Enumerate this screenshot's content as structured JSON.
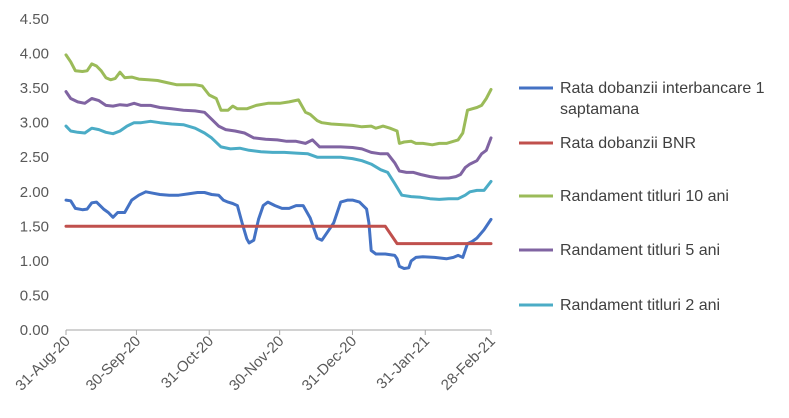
{
  "chart_data": {
    "type": "line",
    "title": "",
    "xlabel": "",
    "ylabel": "",
    "ylim": [
      0,
      4.5
    ],
    "yticks": [
      "0.00",
      "0.50",
      "1.00",
      "1.50",
      "2.00",
      "2.50",
      "3.00",
      "3.50",
      "4.00",
      "4.50"
    ],
    "xlim": [
      "2020-08-31",
      "2021-02-28"
    ],
    "xticks": [
      {
        "date": "2020-08-31",
        "label": "31-Aug-20"
      },
      {
        "date": "2020-09-30",
        "label": "30-Sep-20"
      },
      {
        "date": "2020-10-31",
        "label": "31-Oct-20"
      },
      {
        "date": "2020-11-30",
        "label": "30-Nov-20"
      },
      {
        "date": "2020-12-31",
        "label": "31-Dec-20"
      },
      {
        "date": "2021-01-31",
        "label": "31-Jan-21"
      },
      {
        "date": "2021-02-28",
        "label": "28-Feb-21"
      }
    ],
    "grid": false,
    "legend_position": "right",
    "series": [
      {
        "name": "Rata dobanzii interbancare 1 saptamana",
        "color": "#4472C4",
        "points": [
          [
            "2020-08-31",
            1.88
          ],
          [
            "2020-09-02",
            1.87
          ],
          [
            "2020-09-04",
            1.76
          ],
          [
            "2020-09-07",
            1.74
          ],
          [
            "2020-09-09",
            1.75
          ],
          [
            "2020-09-11",
            1.84
          ],
          [
            "2020-09-13",
            1.85
          ],
          [
            "2020-09-16",
            1.75
          ],
          [
            "2020-09-18",
            1.7
          ],
          [
            "2020-09-20",
            1.63
          ],
          [
            "2020-09-22",
            1.7
          ],
          [
            "2020-09-25",
            1.7
          ],
          [
            "2020-09-28",
            1.88
          ],
          [
            "2020-10-01",
            1.95
          ],
          [
            "2020-10-04",
            2.0
          ],
          [
            "2020-10-07",
            1.98
          ],
          [
            "2020-10-10",
            1.96
          ],
          [
            "2020-10-14",
            1.95
          ],
          [
            "2020-10-18",
            1.95
          ],
          [
            "2020-10-22",
            1.97
          ],
          [
            "2020-10-26",
            1.99
          ],
          [
            "2020-10-29",
            1.99
          ],
          [
            "2020-11-01",
            1.96
          ],
          [
            "2020-11-04",
            1.95
          ],
          [
            "2020-11-06",
            1.88
          ],
          [
            "2020-11-08",
            1.85
          ],
          [
            "2020-11-10",
            1.83
          ],
          [
            "2020-11-12",
            1.8
          ],
          [
            "2020-11-14",
            1.55
          ],
          [
            "2020-11-16",
            1.32
          ],
          [
            "2020-11-17",
            1.26
          ],
          [
            "2020-11-19",
            1.3
          ],
          [
            "2020-11-21",
            1.6
          ],
          [
            "2020-11-23",
            1.8
          ],
          [
            "2020-11-25",
            1.85
          ],
          [
            "2020-11-28",
            1.8
          ],
          [
            "2020-12-01",
            1.76
          ],
          [
            "2020-12-04",
            1.76
          ],
          [
            "2020-12-07",
            1.8
          ],
          [
            "2020-12-10",
            1.8
          ],
          [
            "2020-12-13",
            1.62
          ],
          [
            "2020-12-16",
            1.33
          ],
          [
            "2020-12-18",
            1.3
          ],
          [
            "2020-12-21",
            1.45
          ],
          [
            "2020-12-23",
            1.55
          ],
          [
            "2020-12-26",
            1.85
          ],
          [
            "2020-12-29",
            1.88
          ],
          [
            "2020-12-31",
            1.88
          ],
          [
            "2021-01-03",
            1.85
          ],
          [
            "2021-01-06",
            1.75
          ],
          [
            "2021-01-07",
            1.55
          ],
          [
            "2021-01-08",
            1.15
          ],
          [
            "2021-01-10",
            1.1
          ],
          [
            "2021-01-14",
            1.1
          ],
          [
            "2021-01-18",
            1.08
          ],
          [
            "2021-01-19",
            1.03
          ],
          [
            "2021-01-20",
            0.92
          ],
          [
            "2021-01-22",
            0.89
          ],
          [
            "2021-01-24",
            0.9
          ],
          [
            "2021-01-25",
            1.0
          ],
          [
            "2021-01-27",
            1.05
          ],
          [
            "2021-01-30",
            1.06
          ],
          [
            "2021-02-04",
            1.05
          ],
          [
            "2021-02-09",
            1.03
          ],
          [
            "2021-02-12",
            1.05
          ],
          [
            "2021-02-14",
            1.08
          ],
          [
            "2021-02-16",
            1.05
          ],
          [
            "2021-02-18",
            1.25
          ],
          [
            "2021-02-20",
            1.28
          ],
          [
            "2021-02-22",
            1.33
          ],
          [
            "2021-02-25",
            1.45
          ],
          [
            "2021-02-28",
            1.6
          ]
        ]
      },
      {
        "name": "Rata dobanzii BNR",
        "color": "#C0504D",
        "points": [
          [
            "2020-08-31",
            1.5
          ],
          [
            "2021-01-14",
            1.5
          ],
          [
            "2021-01-19",
            1.25
          ],
          [
            "2021-02-28",
            1.25
          ]
        ]
      },
      {
        "name": "Randament titluri 10 ani",
        "color": "#9BBB59",
        "points": [
          [
            "2020-08-31",
            3.98
          ],
          [
            "2020-09-02",
            3.88
          ],
          [
            "2020-09-04",
            3.75
          ],
          [
            "2020-09-07",
            3.74
          ],
          [
            "2020-09-09",
            3.75
          ],
          [
            "2020-09-11",
            3.85
          ],
          [
            "2020-09-13",
            3.82
          ],
          [
            "2020-09-15",
            3.75
          ],
          [
            "2020-09-17",
            3.65
          ],
          [
            "2020-09-19",
            3.62
          ],
          [
            "2020-09-21",
            3.64
          ],
          [
            "2020-09-23",
            3.73
          ],
          [
            "2020-09-25",
            3.65
          ],
          [
            "2020-09-28",
            3.66
          ],
          [
            "2020-10-01",
            3.63
          ],
          [
            "2020-10-05",
            3.62
          ],
          [
            "2020-10-09",
            3.61
          ],
          [
            "2020-10-13",
            3.58
          ],
          [
            "2020-10-17",
            3.55
          ],
          [
            "2020-10-21",
            3.55
          ],
          [
            "2020-10-25",
            3.55
          ],
          [
            "2020-10-28",
            3.53
          ],
          [
            "2020-10-31",
            3.4
          ],
          [
            "2020-11-03",
            3.35
          ],
          [
            "2020-11-05",
            3.18
          ],
          [
            "2020-11-08",
            3.18
          ],
          [
            "2020-11-10",
            3.24
          ],
          [
            "2020-11-12",
            3.2
          ],
          [
            "2020-11-16",
            3.2
          ],
          [
            "2020-11-20",
            3.25
          ],
          [
            "2020-11-25",
            3.28
          ],
          [
            "2020-11-30",
            3.28
          ],
          [
            "2020-12-04",
            3.3
          ],
          [
            "2020-12-08",
            3.33
          ],
          [
            "2020-12-11",
            3.15
          ],
          [
            "2020-12-13",
            3.12
          ],
          [
            "2020-12-16",
            3.03
          ],
          [
            "2020-12-18",
            3.0
          ],
          [
            "2020-12-22",
            2.98
          ],
          [
            "2020-12-27",
            2.97
          ],
          [
            "2020-12-31",
            2.96
          ],
          [
            "2021-01-04",
            2.94
          ],
          [
            "2021-01-08",
            2.95
          ],
          [
            "2021-01-10",
            2.92
          ],
          [
            "2021-01-13",
            2.95
          ],
          [
            "2021-01-16",
            2.92
          ],
          [
            "2021-01-19",
            2.88
          ],
          [
            "2021-01-20",
            2.7
          ],
          [
            "2021-01-22",
            2.72
          ],
          [
            "2021-01-25",
            2.73
          ],
          [
            "2021-01-27",
            2.7
          ],
          [
            "2021-01-30",
            2.7
          ],
          [
            "2021-02-03",
            2.68
          ],
          [
            "2021-02-06",
            2.7
          ],
          [
            "2021-02-09",
            2.7
          ],
          [
            "2021-02-12",
            2.73
          ],
          [
            "2021-02-14",
            2.75
          ],
          [
            "2021-02-16",
            2.85
          ],
          [
            "2021-02-18",
            3.18
          ],
          [
            "2021-02-20",
            3.2
          ],
          [
            "2021-02-22",
            3.22
          ],
          [
            "2021-02-24",
            3.25
          ],
          [
            "2021-02-26",
            3.35
          ],
          [
            "2021-02-28",
            3.48
          ]
        ]
      },
      {
        "name": "Randament titluri 5 ani",
        "color": "#8064A2",
        "points": [
          [
            "2020-08-31",
            3.45
          ],
          [
            "2020-09-02",
            3.35
          ],
          [
            "2020-09-05",
            3.3
          ],
          [
            "2020-09-08",
            3.28
          ],
          [
            "2020-09-11",
            3.35
          ],
          [
            "2020-09-14",
            3.32
          ],
          [
            "2020-09-17",
            3.25
          ],
          [
            "2020-09-20",
            3.24
          ],
          [
            "2020-09-23",
            3.26
          ],
          [
            "2020-09-26",
            3.25
          ],
          [
            "2020-09-29",
            3.28
          ],
          [
            "2020-10-02",
            3.25
          ],
          [
            "2020-10-06",
            3.25
          ],
          [
            "2020-10-10",
            3.22
          ],
          [
            "2020-10-15",
            3.2
          ],
          [
            "2020-10-20",
            3.18
          ],
          [
            "2020-10-25",
            3.17
          ],
          [
            "2020-10-29",
            3.15
          ],
          [
            "2020-11-01",
            3.05
          ],
          [
            "2020-11-04",
            2.95
          ],
          [
            "2020-11-07",
            2.9
          ],
          [
            "2020-11-11",
            2.88
          ],
          [
            "2020-11-15",
            2.85
          ],
          [
            "2020-11-19",
            2.78
          ],
          [
            "2020-11-24",
            2.76
          ],
          [
            "2020-11-29",
            2.75
          ],
          [
            "2020-12-03",
            2.73
          ],
          [
            "2020-12-07",
            2.73
          ],
          [
            "2020-12-11",
            2.7
          ],
          [
            "2020-12-14",
            2.75
          ],
          [
            "2020-12-17",
            2.65
          ],
          [
            "2020-12-21",
            2.65
          ],
          [
            "2020-12-26",
            2.65
          ],
          [
            "2020-12-31",
            2.64
          ],
          [
            "2021-01-04",
            2.62
          ],
          [
            "2021-01-08",
            2.57
          ],
          [
            "2021-01-12",
            2.55
          ],
          [
            "2021-01-15",
            2.55
          ],
          [
            "2021-01-18",
            2.42
          ],
          [
            "2021-01-20",
            2.3
          ],
          [
            "2021-01-23",
            2.28
          ],
          [
            "2021-01-26",
            2.28
          ],
          [
            "2021-01-29",
            2.25
          ],
          [
            "2021-02-02",
            2.22
          ],
          [
            "2021-02-06",
            2.2
          ],
          [
            "2021-02-10",
            2.2
          ],
          [
            "2021-02-13",
            2.22
          ],
          [
            "2021-02-15",
            2.25
          ],
          [
            "2021-02-17",
            2.35
          ],
          [
            "2021-02-19",
            2.4
          ],
          [
            "2021-02-22",
            2.45
          ],
          [
            "2021-02-24",
            2.55
          ],
          [
            "2021-02-26",
            2.6
          ],
          [
            "2021-02-28",
            2.78
          ]
        ]
      },
      {
        "name": "Randament titluri 2 ani",
        "color": "#4BACC6",
        "points": [
          [
            "2020-08-31",
            2.95
          ],
          [
            "2020-09-02",
            2.88
          ],
          [
            "2020-09-05",
            2.86
          ],
          [
            "2020-09-08",
            2.85
          ],
          [
            "2020-09-11",
            2.92
          ],
          [
            "2020-09-14",
            2.9
          ],
          [
            "2020-09-17",
            2.86
          ],
          [
            "2020-09-20",
            2.84
          ],
          [
            "2020-09-23",
            2.88
          ],
          [
            "2020-09-26",
            2.95
          ],
          [
            "2020-09-29",
            3.0
          ],
          [
            "2020-10-02",
            3.0
          ],
          [
            "2020-10-06",
            3.02
          ],
          [
            "2020-10-10",
            3.0
          ],
          [
            "2020-10-15",
            2.98
          ],
          [
            "2020-10-20",
            2.97
          ],
          [
            "2020-10-25",
            2.92
          ],
          [
            "2020-10-29",
            2.85
          ],
          [
            "2020-11-01",
            2.78
          ],
          [
            "2020-11-05",
            2.65
          ],
          [
            "2020-11-09",
            2.62
          ],
          [
            "2020-11-13",
            2.63
          ],
          [
            "2020-11-17",
            2.6
          ],
          [
            "2020-11-22",
            2.58
          ],
          [
            "2020-11-27",
            2.57
          ],
          [
            "2020-12-02",
            2.57
          ],
          [
            "2020-12-07",
            2.56
          ],
          [
            "2020-12-12",
            2.55
          ],
          [
            "2020-12-16",
            2.5
          ],
          [
            "2020-12-21",
            2.5
          ],
          [
            "2020-12-26",
            2.5
          ],
          [
            "2020-12-31",
            2.48
          ],
          [
            "2021-01-04",
            2.45
          ],
          [
            "2021-01-08",
            2.4
          ],
          [
            "2021-01-12",
            2.32
          ],
          [
            "2021-01-15",
            2.28
          ],
          [
            "2021-01-18",
            2.12
          ],
          [
            "2021-01-21",
            1.95
          ],
          [
            "2021-01-25",
            1.93
          ],
          [
            "2021-01-29",
            1.92
          ],
          [
            "2021-02-02",
            1.9
          ],
          [
            "2021-02-06",
            1.89
          ],
          [
            "2021-02-10",
            1.9
          ],
          [
            "2021-02-14",
            1.9
          ],
          [
            "2021-02-17",
            1.95
          ],
          [
            "2021-02-19",
            2.0
          ],
          [
            "2021-02-22",
            2.02
          ],
          [
            "2021-02-25",
            2.02
          ],
          [
            "2021-02-28",
            2.15
          ]
        ]
      }
    ]
  }
}
